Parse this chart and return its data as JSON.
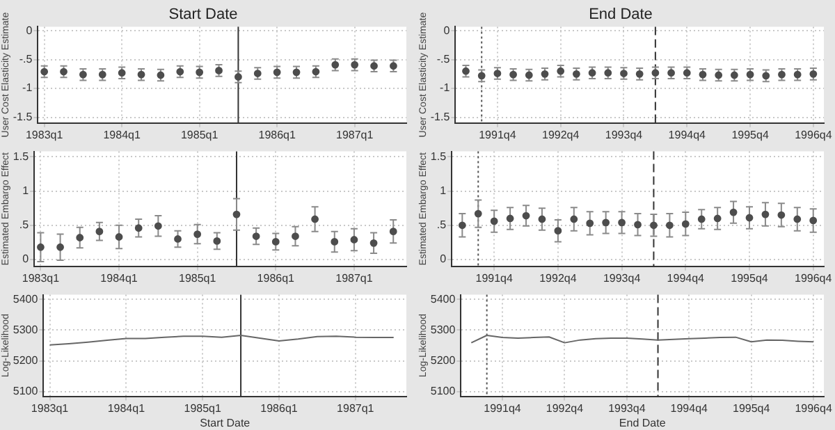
{
  "chart_data": [
    {
      "type": "scatter",
      "title": "Start Date",
      "ylabel": "User Cost Elasticity Estimate",
      "color": "#4d4d4d",
      "marker": "circle",
      "grid": true,
      "legend": false,
      "x": [
        "1983-01",
        "1983-04",
        "1983-07",
        "1983-10",
        "1984-01",
        "1984-04",
        "1984-07",
        "1984-10",
        "1985-01",
        "1985-04",
        "1985-07",
        "1985-10",
        "1986-01",
        "1986-04",
        "1986-07",
        "1986-10",
        "1987-01",
        "1987-04",
        "1987-07"
      ],
      "values": [
        -0.71,
        -0.71,
        -0.76,
        -0.76,
        -0.73,
        -0.76,
        -0.77,
        -0.71,
        -0.72,
        -0.69,
        -0.8,
        -0.74,
        -0.72,
        -0.72,
        -0.71,
        -0.59,
        -0.59,
        -0.61,
        -0.61
      ],
      "errors": [
        0.1,
        0.1,
        0.1,
        0.1,
        0.1,
        0.1,
        0.1,
        0.1,
        0.1,
        0.1,
        0.1,
        0.1,
        0.1,
        0.1,
        0.1,
        0.1,
        0.1,
        0.1,
        0.1
      ],
      "xlim": [
        "1982-12",
        "1987-09"
      ],
      "xticks": [
        {
          "value": "1983-01",
          "label": "1983q1"
        },
        {
          "value": "1984-01",
          "label": "1984q1"
        },
        {
          "value": "1985-01",
          "label": "1985q1"
        },
        {
          "value": "1986-01",
          "label": "1986q1"
        },
        {
          "value": "1987-01",
          "label": "1987q1"
        }
      ],
      "ylim": [
        -1.6,
        0.07
      ],
      "yticks": [
        {
          "value": -1.5,
          "label": "-1.5"
        },
        {
          "value": -1,
          "label": "-1"
        },
        {
          "value": -0.5,
          "label": "-.5"
        },
        {
          "value": 0,
          "label": "0"
        }
      ],
      "ref_lines": [
        {
          "axis": "x",
          "value": "1985-07",
          "color": "#333333",
          "line_style": "solid"
        }
      ]
    },
    {
      "type": "scatter",
      "title": "End Date",
      "ylabel": "User Cost Elasticity Estimate",
      "color": "#4d4d4d",
      "marker": "circle",
      "grid": true,
      "legend": false,
      "x": [
        "1991-04",
        "1991-07",
        "1991-10",
        "1992-01",
        "1992-04",
        "1992-07",
        "1992-10",
        "1993-01",
        "1993-04",
        "1993-07",
        "1993-10",
        "1994-01",
        "1994-04",
        "1994-07",
        "1994-10",
        "1995-01",
        "1995-04",
        "1995-07",
        "1995-10",
        "1996-01",
        "1996-04",
        "1996-07",
        "1996-10"
      ],
      "values": [
        -0.7,
        -0.78,
        -0.74,
        -0.76,
        -0.77,
        -0.75,
        -0.7,
        -0.75,
        -0.73,
        -0.73,
        -0.74,
        -0.75,
        -0.73,
        -0.73,
        -0.73,
        -0.76,
        -0.77,
        -0.77,
        -0.76,
        -0.78,
        -0.76,
        -0.76,
        -0.75
      ],
      "errors": [
        0.1,
        0.1,
        0.1,
        0.1,
        0.1,
        0.1,
        0.1,
        0.1,
        0.1,
        0.1,
        0.1,
        0.1,
        0.1,
        0.1,
        0.1,
        0.1,
        0.1,
        0.1,
        0.1,
        0.1,
        0.1,
        0.1,
        0.1
      ],
      "xlim": [
        "1991-02",
        "1996-12"
      ],
      "xticks": [
        {
          "value": "1991-10",
          "label": "1991q4"
        },
        {
          "value": "1992-10",
          "label": "1992q4"
        },
        {
          "value": "1993-10",
          "label": "1993q4"
        },
        {
          "value": "1994-10",
          "label": "1994q4"
        },
        {
          "value": "1995-10",
          "label": "1995q4"
        },
        {
          "value": "1996-10",
          "label": "1996q4"
        }
      ],
      "ylim": [
        -1.6,
        0.07
      ],
      "yticks": [
        {
          "value": -1.5,
          "label": "-1.5"
        },
        {
          "value": -1,
          "label": "-1"
        },
        {
          "value": -0.5,
          "label": "-.5"
        },
        {
          "value": 0,
          "label": "0"
        }
      ],
      "ref_lines": [
        {
          "axis": "x",
          "value": "1991-07",
          "color": "#555555",
          "line_style": "dotted"
        },
        {
          "axis": "x",
          "value": "1994-04",
          "color": "#333333",
          "line_style": "dashed"
        }
      ]
    },
    {
      "type": "scatter",
      "ylabel": "Estimated Embargo Effect",
      "color": "#4d4d4d",
      "marker": "circle",
      "grid": true,
      "legend": false,
      "x": [
        "1983-01",
        "1983-04",
        "1983-07",
        "1983-10",
        "1984-01",
        "1984-04",
        "1984-07",
        "1984-10",
        "1985-01",
        "1985-04",
        "1985-07",
        "1985-10",
        "1986-01",
        "1986-04",
        "1986-07",
        "1986-10",
        "1987-01",
        "1987-04",
        "1987-07"
      ],
      "values": [
        0.18,
        0.18,
        0.32,
        0.41,
        0.33,
        0.46,
        0.49,
        0.3,
        0.37,
        0.27,
        0.66,
        0.34,
        0.26,
        0.34,
        0.59,
        0.26,
        0.29,
        0.24,
        0.41
      ],
      "errors": [
        0.21,
        0.19,
        0.15,
        0.13,
        0.17,
        0.13,
        0.15,
        0.12,
        0.14,
        0.12,
        0.23,
        0.12,
        0.12,
        0.14,
        0.18,
        0.15,
        0.16,
        0.15,
        0.17
      ],
      "xlim": [
        "1982-12",
        "1987-09"
      ],
      "xticks": [
        {
          "value": "1983-01",
          "label": "1983q1"
        },
        {
          "value": "1984-01",
          "label": "1984q1"
        },
        {
          "value": "1985-01",
          "label": "1985q1"
        },
        {
          "value": "1986-01",
          "label": "1986q1"
        },
        {
          "value": "1987-01",
          "label": "1987q1"
        }
      ],
      "ylim": [
        -0.1,
        1.58
      ],
      "yticks": [
        {
          "value": 0,
          "label": "0"
        },
        {
          "value": 0.5,
          "label": ".5"
        },
        {
          "value": 1,
          "label": "1"
        },
        {
          "value": 1.5,
          "label": "1.5"
        }
      ],
      "ref_lines": [
        {
          "axis": "x",
          "value": "1985-07",
          "color": "#333333",
          "line_style": "solid"
        }
      ]
    },
    {
      "type": "scatter",
      "ylabel": "Estimated Embargo Effect",
      "color": "#4d4d4d",
      "marker": "circle",
      "grid": true,
      "legend": false,
      "x": [
        "1991-04",
        "1991-07",
        "1991-10",
        "1992-01",
        "1992-04",
        "1992-07",
        "1992-10",
        "1993-01",
        "1993-04",
        "1993-07",
        "1993-10",
        "1994-01",
        "1994-04",
        "1994-07",
        "1994-10",
        "1995-01",
        "1995-04",
        "1995-07",
        "1995-10",
        "1996-01",
        "1996-04",
        "1996-07",
        "1996-10"
      ],
      "values": [
        0.5,
        0.67,
        0.56,
        0.6,
        0.64,
        0.59,
        0.42,
        0.59,
        0.53,
        0.54,
        0.54,
        0.51,
        0.5,
        0.5,
        0.52,
        0.59,
        0.6,
        0.69,
        0.61,
        0.66,
        0.65,
        0.59,
        0.57
      ],
      "errors": [
        0.17,
        0.2,
        0.16,
        0.16,
        0.15,
        0.16,
        0.16,
        0.17,
        0.17,
        0.16,
        0.16,
        0.16,
        0.16,
        0.17,
        0.17,
        0.14,
        0.16,
        0.16,
        0.16,
        0.17,
        0.17,
        0.17,
        0.17
      ],
      "xlim": [
        "1991-02",
        "1996-12"
      ],
      "xticks": [
        {
          "value": "1991-10",
          "label": "1991q4"
        },
        {
          "value": "1992-10",
          "label": "1992q4"
        },
        {
          "value": "1993-10",
          "label": "1993q4"
        },
        {
          "value": "1994-10",
          "label": "1994q4"
        },
        {
          "value": "1995-10",
          "label": "1995q4"
        },
        {
          "value": "1996-10",
          "label": "1996q4"
        }
      ],
      "ylim": [
        -0.1,
        1.58
      ],
      "yticks": [
        {
          "value": 0,
          "label": "0"
        },
        {
          "value": 0.5,
          "label": ".5"
        },
        {
          "value": 1,
          "label": "1"
        },
        {
          "value": 1.5,
          "label": "1.5"
        }
      ],
      "ref_lines": [
        {
          "axis": "x",
          "value": "1991-07",
          "color": "#555555",
          "line_style": "dotted"
        },
        {
          "axis": "x",
          "value": "1994-04",
          "color": "#333333",
          "line_style": "dashed"
        }
      ]
    },
    {
      "type": "line",
      "xlabel": "Start Date",
      "ylabel": "Log-Likelihood",
      "color": "#666666",
      "line_style": "solid",
      "grid": true,
      "legend": false,
      "x": [
        "1983-01",
        "1983-04",
        "1983-07",
        "1983-10",
        "1984-01",
        "1984-04",
        "1984-07",
        "1984-10",
        "1985-01",
        "1985-04",
        "1985-07",
        "1985-10",
        "1986-01",
        "1986-04",
        "1986-07",
        "1986-10",
        "1987-01",
        "1987-04",
        "1987-07"
      ],
      "values": [
        5252,
        5256,
        5261,
        5267,
        5273,
        5273,
        5277,
        5280,
        5280,
        5277,
        5283,
        5274,
        5265,
        5271,
        5279,
        5280,
        5277,
        5276,
        5276
      ],
      "xlim": [
        "1982-12",
        "1987-09"
      ],
      "xticks": [
        {
          "value": "1983-01",
          "label": "1983q1"
        },
        {
          "value": "1984-01",
          "label": "1984q1"
        },
        {
          "value": "1985-01",
          "label": "1985q1"
        },
        {
          "value": "1986-01",
          "label": "1986q1"
        },
        {
          "value": "1987-01",
          "label": "1987q1"
        }
      ],
      "ylim": [
        5085,
        5415
      ],
      "yticks": [
        5100,
        5200,
        5300,
        5400
      ],
      "ref_lines": [
        {
          "axis": "x",
          "value": "1985-07",
          "color": "#333333",
          "line_style": "solid"
        }
      ]
    },
    {
      "type": "line",
      "xlabel": "End Date",
      "ylabel": "Log-Likelihood",
      "color": "#666666",
      "line_style": "solid",
      "grid": true,
      "legend": false,
      "x": [
        "1991-04",
        "1991-07",
        "1991-10",
        "1992-01",
        "1992-04",
        "1992-07",
        "1992-10",
        "1993-01",
        "1993-04",
        "1993-07",
        "1993-10",
        "1994-01",
        "1994-04",
        "1994-07",
        "1994-10",
        "1995-01",
        "1995-04",
        "1995-07",
        "1995-10",
        "1996-01",
        "1996-04",
        "1996-07",
        "1996-10"
      ],
      "values": [
        5259,
        5283,
        5276,
        5274,
        5276,
        5278,
        5259,
        5268,
        5272,
        5274,
        5274,
        5271,
        5268,
        5270,
        5272,
        5274,
        5276,
        5277,
        5262,
        5268,
        5267,
        5264,
        5262
      ],
      "xlim": [
        "1991-02",
        "1996-12"
      ],
      "xticks": [
        {
          "value": "1991-10",
          "label": "1991q4"
        },
        {
          "value": "1992-10",
          "label": "1992q4"
        },
        {
          "value": "1993-10",
          "label": "1993q4"
        },
        {
          "value": "1994-10",
          "label": "1994q4"
        },
        {
          "value": "1995-10",
          "label": "1995q4"
        },
        {
          "value": "1996-10",
          "label": "1996q4"
        }
      ],
      "ylim": [
        5085,
        5415
      ],
      "yticks": [
        5100,
        5200,
        5300,
        5400
      ],
      "ref_lines": [
        {
          "axis": "x",
          "value": "1991-07",
          "color": "#555555",
          "line_style": "dotted"
        },
        {
          "axis": "x",
          "value": "1994-04",
          "color": "#333333",
          "line_style": "dashed"
        }
      ]
    }
  ]
}
